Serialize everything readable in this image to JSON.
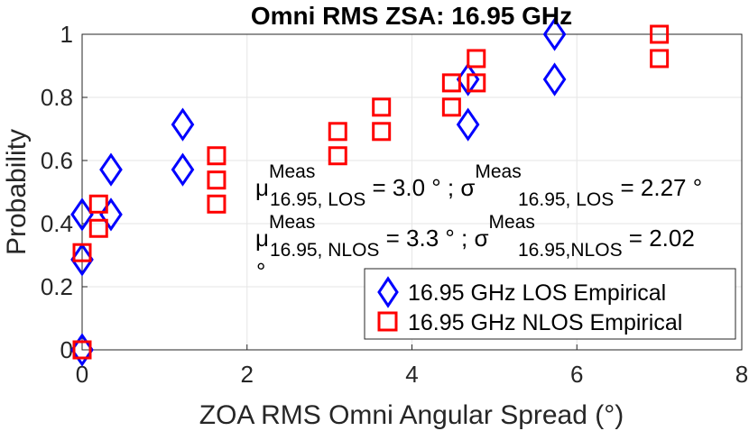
{
  "chart_data": {
    "type": "scatter",
    "title": "Omni RMS ZSA: 16.95 GHz",
    "xlabel": "ZOA RMS Omni Angular Spread (°)",
    "ylabel": "Probability",
    "xlim": [
      0,
      8
    ],
    "ylim": [
      0,
      1
    ],
    "xticks": [
      "0",
      "2",
      "4",
      "6",
      "8"
    ],
    "yticks": [
      "0",
      "0.2",
      "0.4",
      "0.6",
      "0.8",
      "1"
    ],
    "grid": true,
    "legend_position": "bottom-right",
    "series": [
      {
        "name": "16.95 GHz LOS Empirical",
        "marker": "diamond",
        "color": "#0000ff",
        "points": [
          {
            "x": 0.0,
            "y": 0.0
          },
          {
            "x": 0.0,
            "y": 0.286
          },
          {
            "x": 0.0,
            "y": 0.429
          },
          {
            "x": 0.35,
            "y": 0.429
          },
          {
            "x": 0.35,
            "y": 0.571
          },
          {
            "x": 1.22,
            "y": 0.571
          },
          {
            "x": 1.22,
            "y": 0.714
          },
          {
            "x": 4.68,
            "y": 0.714
          },
          {
            "x": 4.68,
            "y": 0.857
          },
          {
            "x": 5.73,
            "y": 0.857
          },
          {
            "x": 5.73,
            "y": 1.0
          }
        ]
      },
      {
        "name": "16.95 GHz NLOS Empirical",
        "marker": "square",
        "color": "#ff0000",
        "points": [
          {
            "x": 0.0,
            "y": 0.0
          },
          {
            "x": 0.0,
            "y": 0.308
          },
          {
            "x": 0.2,
            "y": 0.385
          },
          {
            "x": 0.2,
            "y": 0.462
          },
          {
            "x": 1.63,
            "y": 0.462
          },
          {
            "x": 1.63,
            "y": 0.538
          },
          {
            "x": 1.63,
            "y": 0.615
          },
          {
            "x": 3.1,
            "y": 0.615
          },
          {
            "x": 3.1,
            "y": 0.692
          },
          {
            "x": 3.63,
            "y": 0.692
          },
          {
            "x": 3.63,
            "y": 0.769
          },
          {
            "x": 4.48,
            "y": 0.769
          },
          {
            "x": 4.48,
            "y": 0.846
          },
          {
            "x": 4.78,
            "y": 0.846
          },
          {
            "x": 4.78,
            "y": 0.923
          },
          {
            "x": 7.0,
            "y": 0.923
          },
          {
            "x": 7.0,
            "y": 1.0
          }
        ]
      }
    ],
    "annotations": {
      "line1": {
        "mu_sym": "μ",
        "mu_sup": "Meas",
        "mu_sub": "16.95, LOS",
        "mu_val": " = 3.0 ° ; ",
        "sigma_sym": "σ",
        "sigma_sup": "Meas",
        "sigma_sub": "16.95, LOS",
        "sigma_val": " = 2.27 °"
      },
      "line2": {
        "mu_sym": "μ",
        "mu_sup": "Meas",
        "mu_sub": "16.95, NLOS",
        "mu_val": " = 3.3 ° ; ",
        "sigma_sym": "σ",
        "sigma_sup": "Meas",
        "sigma_sub": "16.95,NLOS",
        "sigma_val": " = 2.02"
      },
      "line3": "°"
    }
  }
}
